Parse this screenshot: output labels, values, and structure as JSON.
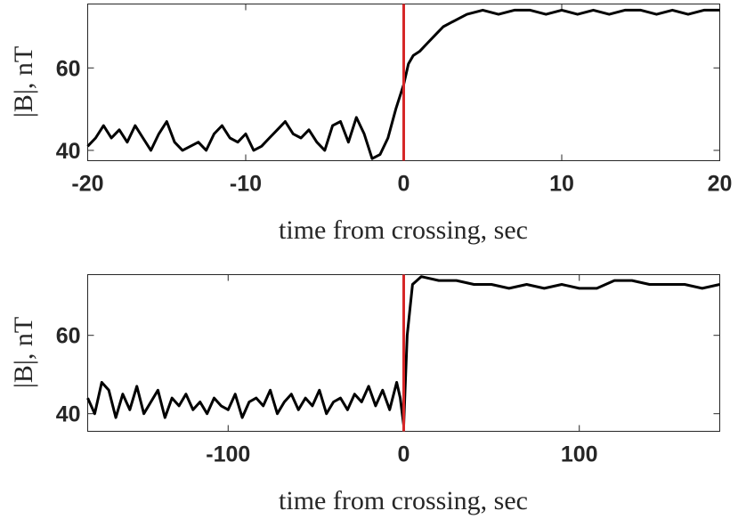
{
  "chart_data": [
    {
      "type": "line",
      "xlabel": "time from crossing, sec",
      "ylabel": "|B|, nT",
      "xlim": [
        -20,
        20
      ],
      "ylim": [
        37.5,
        75.5
      ],
      "xticks": [
        -20,
        -10,
        0,
        10,
        20
      ],
      "xtick_labels": [
        "-20",
        "-10",
        "0",
        "10",
        "20"
      ],
      "yticks": [
        40,
        60
      ],
      "ytick_labels": [
        "40",
        "60"
      ],
      "grid": false,
      "marker_x": 0,
      "marker_color": "#d62728",
      "series": [
        {
          "color": "#000000",
          "x": [
            -20,
            -19.5,
            -19,
            -18.5,
            -18,
            -17.5,
            -17,
            -16.5,
            -16,
            -15.5,
            -15,
            -14.5,
            -14,
            -13.5,
            -13,
            -12.5,
            -12,
            -11.5,
            -11,
            -10.5,
            -10,
            -9.5,
            -9,
            -8.5,
            -8,
            -7.5,
            -7,
            -6.5,
            -6,
            -5.5,
            -5,
            -4.5,
            -4,
            -3.5,
            -3,
            -2.5,
            -2,
            -1.5,
            -1,
            -0.5,
            0,
            0.3,
            0.6,
            1,
            1.5,
            2,
            2.5,
            3,
            3.5,
            4,
            5,
            6,
            7,
            8,
            9,
            10,
            11,
            12,
            13,
            14,
            15,
            16,
            17,
            18,
            19,
            20
          ],
          "y": [
            41,
            43,
            46,
            43,
            45,
            42,
            46,
            43,
            40,
            44,
            47,
            42,
            40,
            41,
            42,
            40,
            44,
            46,
            43,
            42,
            44,
            40,
            41,
            43,
            45,
            47,
            44,
            43,
            45,
            42,
            40,
            46,
            47,
            42,
            48,
            44,
            38,
            39,
            43,
            50,
            56,
            61,
            63,
            64,
            66,
            68,
            70,
            71,
            72,
            73,
            74,
            73,
            74,
            74,
            73,
            74,
            73,
            74,
            73,
            74,
            74,
            73,
            74,
            73,
            74,
            74
          ]
        }
      ]
    },
    {
      "type": "line",
      "xlabel": "time from crossing, sec",
      "ylabel": "|B|, nT",
      "xlim": [
        -180,
        180
      ],
      "ylim": [
        35.5,
        75.5
      ],
      "xticks": [
        -100,
        0,
        100
      ],
      "xtick_labels": [
        "-100",
        "0",
        "100"
      ],
      "yticks": [
        40,
        60
      ],
      "ytick_labels": [
        "40",
        "60"
      ],
      "grid": false,
      "marker_x": 0,
      "marker_color": "#d62728",
      "series": [
        {
          "color": "#000000",
          "x": [
            -180,
            -176,
            -172,
            -168,
            -164,
            -160,
            -156,
            -152,
            -148,
            -144,
            -140,
            -136,
            -132,
            -128,
            -124,
            -120,
            -116,
            -112,
            -108,
            -104,
            -100,
            -96,
            -92,
            -88,
            -84,
            -80,
            -76,
            -72,
            -68,
            -64,
            -60,
            -56,
            -52,
            -48,
            -44,
            -40,
            -36,
            -32,
            -28,
            -24,
            -20,
            -16,
            -12,
            -8,
            -4,
            -2,
            0,
            2,
            5,
            10,
            20,
            30,
            40,
            50,
            60,
            70,
            80,
            90,
            100,
            110,
            115,
            120,
            130,
            140,
            150,
            160,
            170,
            180
          ],
          "y": [
            44,
            40,
            48,
            46,
            39,
            45,
            41,
            47,
            40,
            43,
            46,
            39,
            44,
            42,
            45,
            41,
            43,
            40,
            44,
            42,
            41,
            45,
            39,
            43,
            44,
            42,
            46,
            40,
            43,
            45,
            41,
            44,
            42,
            46,
            40,
            43,
            44,
            41,
            45,
            43,
            47,
            42,
            46,
            41,
            48,
            44,
            37,
            60,
            73,
            75,
            74,
            74,
            73,
            73,
            72,
            73,
            72,
            73,
            72,
            72,
            73,
            74,
            74,
            73,
            73,
            73,
            72,
            73
          ]
        }
      ]
    }
  ]
}
